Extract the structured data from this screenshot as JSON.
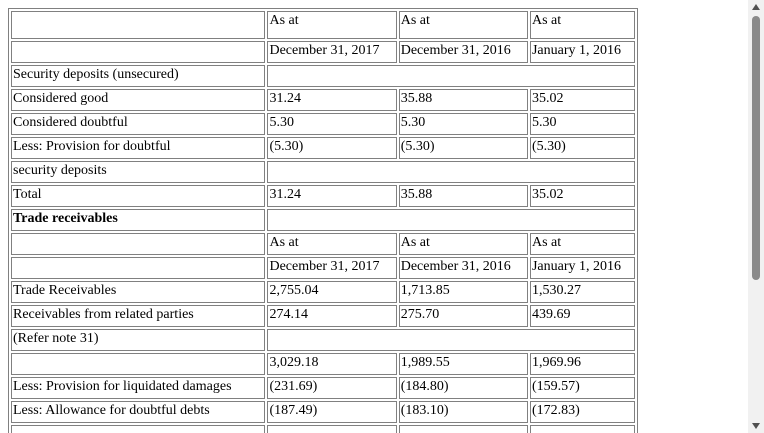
{
  "table": {
    "rows": [
      {
        "cells": [
          "",
          "As at",
          "As at",
          "As at"
        ],
        "tall": true
      },
      {
        "cells": [
          "",
          "December 31, 2017",
          "December 31, 2016",
          "January 1, 2016"
        ]
      },
      {
        "cells": [
          "Security deposits (unsecured)",
          ""
        ],
        "spans": [
          1,
          3
        ]
      },
      {
        "cells": [
          "Considered good",
          "31.24",
          "35.88",
          "35.02"
        ]
      },
      {
        "cells": [
          "Considered doubtful",
          "5.30",
          "5.30",
          "5.30"
        ]
      },
      {
        "cells": [
          "Less: Provision for doubtful",
          "(5.30)",
          "(5.30)",
          "(5.30)"
        ]
      },
      {
        "cells": [
          "security deposits",
          ""
        ],
        "spans": [
          1,
          3
        ]
      },
      {
        "cells": [
          "Total",
          "31.24",
          "35.88",
          "35.02"
        ]
      },
      {
        "cells": [
          "Trade receivables",
          ""
        ],
        "spans": [
          1,
          3
        ],
        "bold": [
          true,
          false
        ]
      },
      {
        "cells": [
          "",
          "As at",
          "As at",
          "As at"
        ]
      },
      {
        "cells": [
          "",
          "December 31, 2017",
          "December 31, 2016",
          "January 1, 2016"
        ]
      },
      {
        "cells": [
          "Trade Receivables",
          "2,755.04",
          "1,713.85",
          "1,530.27"
        ]
      },
      {
        "cells": [
          "Receivables from related parties",
          "274.14",
          "275.70",
          "439.69"
        ]
      },
      {
        "cells": [
          "(Refer note 31)",
          ""
        ],
        "spans": [
          1,
          3
        ]
      },
      {
        "cells": [
          "",
          "3,029.18",
          "1,989.55",
          "1,969.96"
        ]
      },
      {
        "cells": [
          "Less: Provision for liquidated damages",
          "(231.69)",
          "(184.80)",
          "(159.57)"
        ]
      },
      {
        "cells": [
          "Less: Allowance for doubtful debts",
          "(187.49)",
          "(183.10)",
          "(172.83)"
        ]
      },
      {
        "cells": [
          "",
          "",
          "",
          ""
        ]
      }
    ]
  }
}
